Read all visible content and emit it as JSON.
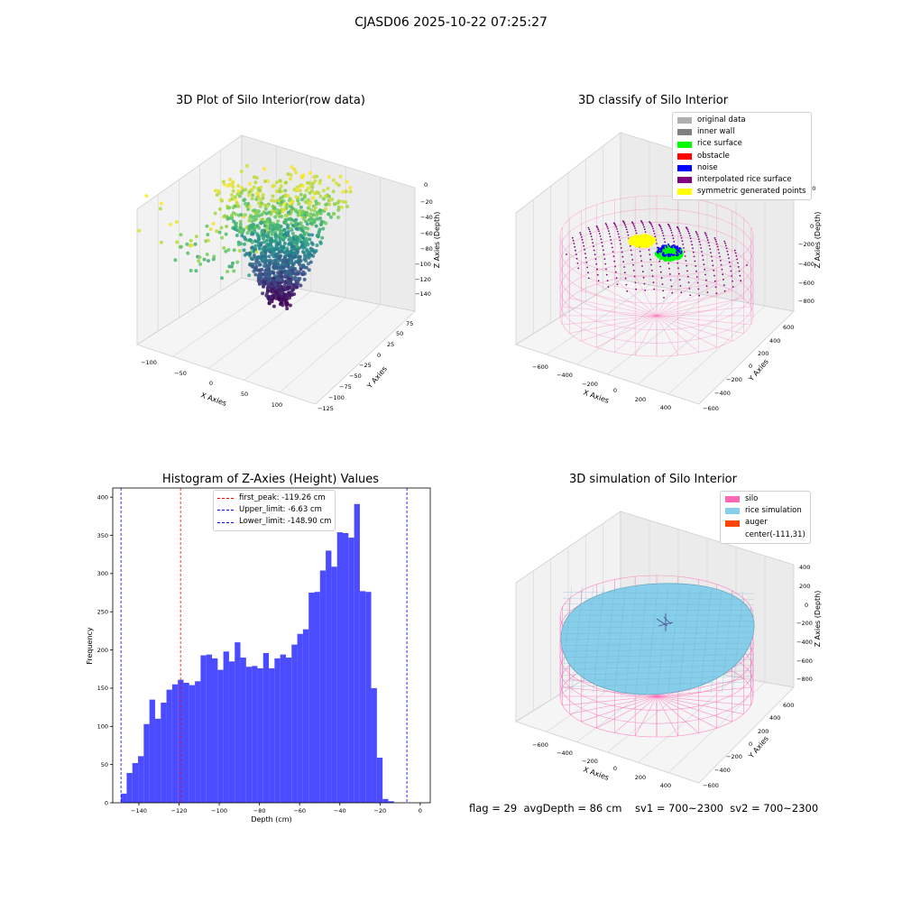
{
  "suptitle": "CJASD06 2025-10-22 07:25:27",
  "footer_text": "flag = 29  avgDepth = 86 cm    sv1 = 700~2300  sv2 = 700~2300",
  "panels": {
    "raw": {
      "title": "3D Plot of Silo Interior(row data)",
      "xlabel": "X Axies",
      "ylabel": "Y Axies",
      "zlabel": "Z Axies (Depth)",
      "xticks": [
        "−100",
        "−50",
        "0",
        "50",
        "100"
      ],
      "yticks": [
        "75",
        "50",
        "25",
        "0",
        "−25",
        "−50",
        "−75",
        "−100",
        "−125"
      ],
      "zticks": [
        "0",
        "−20",
        "−40",
        "−60",
        "−80",
        "−100",
        "−120",
        "−140"
      ],
      "colormap": [
        "#440154",
        "#3b528b",
        "#21918c",
        "#5ec962",
        "#fde725"
      ]
    },
    "classify": {
      "title": "3D classify of Silo Interior",
      "xlabel": "X Axies",
      "ylabel": "Y Axies",
      "zlabel": "Z Axies (Depth)",
      "xticks": [
        "−600",
        "−400",
        "−200",
        "0",
        "200",
        "400"
      ],
      "yticks": [
        "600",
        "400",
        "200",
        "0",
        "−200",
        "−400",
        "−600"
      ],
      "zticks": [
        "200",
        "0",
        "−200",
        "−400",
        "−600",
        "−800"
      ],
      "legend": [
        {
          "label": "original data",
          "color": "#b0b0b0"
        },
        {
          "label": "inner wall",
          "color": "#808080"
        },
        {
          "label": "rice surface",
          "color": "#00ff00"
        },
        {
          "label": "obstacle",
          "color": "#ff0000"
        },
        {
          "label": "noise",
          "color": "#0000ff"
        },
        {
          "label": "interpolated rice surface",
          "color": "#800080"
        },
        {
          "label": "symmetric generated points",
          "color": "#ffff00"
        }
      ]
    },
    "simulation": {
      "title": "3D simulation of Silo Interior",
      "xlabel": "X Axies",
      "ylabel": "Y Axies",
      "zlabel": "Z Axies (Depth)",
      "xticks": [
        "−600",
        "−400",
        "−200",
        "0",
        "200",
        "400"
      ],
      "yticks": [
        "600",
        "400",
        "200",
        "0",
        "−200",
        "−400",
        "−600"
      ],
      "zticks": [
        "400",
        "200",
        "0",
        "−200",
        "−400",
        "−600",
        "−800"
      ],
      "legend": [
        {
          "label": "silo",
          "color": "#ff69b4"
        },
        {
          "label": "rice simulation",
          "color": "#87ceeb"
        },
        {
          "label": "auger",
          "color": "#ff4500"
        },
        {
          "label": "center(-111,31)",
          "color": ""
        }
      ]
    }
  },
  "chart_data": {
    "type": "bar",
    "title": "Histogram of Z-Axies (Height) Values",
    "xlabel": "Depth (cm)",
    "ylabel": "Frequency",
    "xlim": [
      -153,
      5
    ],
    "ylim": [
      0,
      412
    ],
    "xticks": [
      -140,
      -120,
      -100,
      -80,
      -60,
      -40,
      -20,
      0
    ],
    "xtick_labels": [
      "−140",
      "−120",
      "−100",
      "−80",
      "−60",
      "−40",
      "−20",
      "0"
    ],
    "yticks": [
      0,
      50,
      100,
      150,
      200,
      250,
      300,
      350,
      400
    ],
    "bar_color": "#4b4bff",
    "bin_start": -148.9,
    "bin_width": 2.83,
    "values": [
      12,
      39,
      52,
      61,
      103,
      135,
      110,
      131,
      148,
      155,
      161,
      157,
      154,
      159,
      193,
      194,
      189,
      174,
      198,
      185,
      210,
      190,
      178,
      179,
      176,
      196,
      176,
      189,
      194,
      190,
      207,
      221,
      227,
      275,
      276,
      304,
      330,
      309,
      354,
      353,
      347,
      391,
      277,
      276,
      150,
      59,
      5,
      2
    ],
    "vlines": [
      {
        "label": "first_peak: -119.26 cm",
        "x": -119.26,
        "color": "#ff0000"
      },
      {
        "label": "Upper_limit: -6.63 cm",
        "x": -6.63,
        "color": "#0000ff"
      },
      {
        "label": "Lower_limit: -148.90 cm",
        "x": -148.9,
        "color": "#0000ff"
      }
    ]
  }
}
